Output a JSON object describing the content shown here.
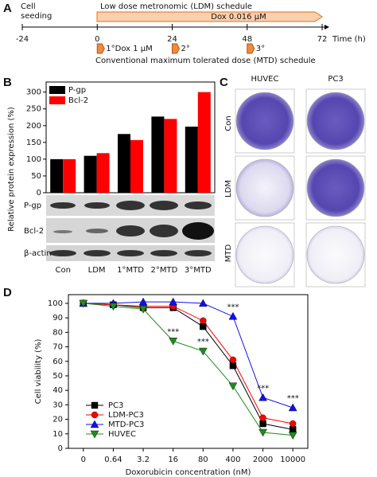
{
  "panel_labels": [
    "A",
    "B",
    "C",
    "D"
  ],
  "panel_a": {
    "seeding": [
      "Cell",
      "seeding"
    ],
    "ldm_title": "Low dose metronomic (LDM) schedule",
    "ldm_dose": "Dox 0.016 μM",
    "xlim": [
      -24,
      72
    ],
    "ticks": [
      -24,
      0,
      24,
      48,
      72
    ],
    "axis_label": "Time (h)",
    "mtd_doses": [
      "1°Dox 1 μM",
      "2°",
      "3°"
    ],
    "mtd_title": "Conventional maximum tolerated dose (MTD) schedule"
  },
  "blot_labels": [
    "P-gp",
    "Bcl-2",
    "β-actin"
  ],
  "panel_c": {
    "columns": [
      "HUVEC",
      "PC3"
    ],
    "rows": [
      "Con",
      "LDM",
      "MTD"
    ]
  },
  "chart_data": [
    {
      "type": "bar",
      "y_label": "Relative protein expression (%)",
      "categories": [
        "Con",
        "LDM",
        "1°MTD",
        "2°MTD",
        "3°MTD"
      ],
      "series": [
        {
          "name": "P-gp",
          "color": "#000000",
          "values": [
            100,
            110,
            175,
            227,
            197
          ]
        },
        {
          "name": "Bcl-2",
          "color": "#ff0000",
          "values": [
            100,
            118,
            157,
            220,
            300
          ]
        }
      ],
      "ylim": [
        0,
        330
      ],
      "yticks": [
        0,
        50,
        100,
        150,
        200,
        250,
        300
      ],
      "legend": "upper-left"
    },
    {
      "type": "line",
      "y_label": "Cell viability (%)",
      "x_label": "Doxorubicin concentration (nM)",
      "categories": [
        "0",
        "0.64",
        "3.2",
        "16",
        "80",
        "400",
        "2000",
        "10000"
      ],
      "series": [
        {
          "name": "PC3",
          "color": "#000000",
          "marker": "square",
          "values": [
            100,
            99,
            97,
            97,
            84,
            57,
            17,
            13
          ]
        },
        {
          "name": "LDM-PC3",
          "color": "#ff0000",
          "marker": "circle",
          "values": [
            100,
            99,
            98,
            98,
            88,
            61,
            21,
            17
          ]
        },
        {
          "name": "MTD-PC3",
          "color": "#1010ee",
          "marker": "triangle",
          "values": [
            100,
            100,
            101,
            101,
            100,
            91,
            35,
            28
          ]
        },
        {
          "name": "HUVEC",
          "color": "#1e8c1e",
          "marker": "triangle-down",
          "values": [
            100,
            98,
            96,
            74,
            67,
            43,
            11,
            9
          ]
        }
      ],
      "annotations": [
        "***",
        "***",
        "***",
        "***",
        "***"
      ],
      "ylim": [
        0,
        106
      ],
      "yticks": [
        0,
        10,
        20,
        30,
        40,
        50,
        60,
        70,
        80,
        90,
        100
      ],
      "legend": "lower-left"
    }
  ]
}
